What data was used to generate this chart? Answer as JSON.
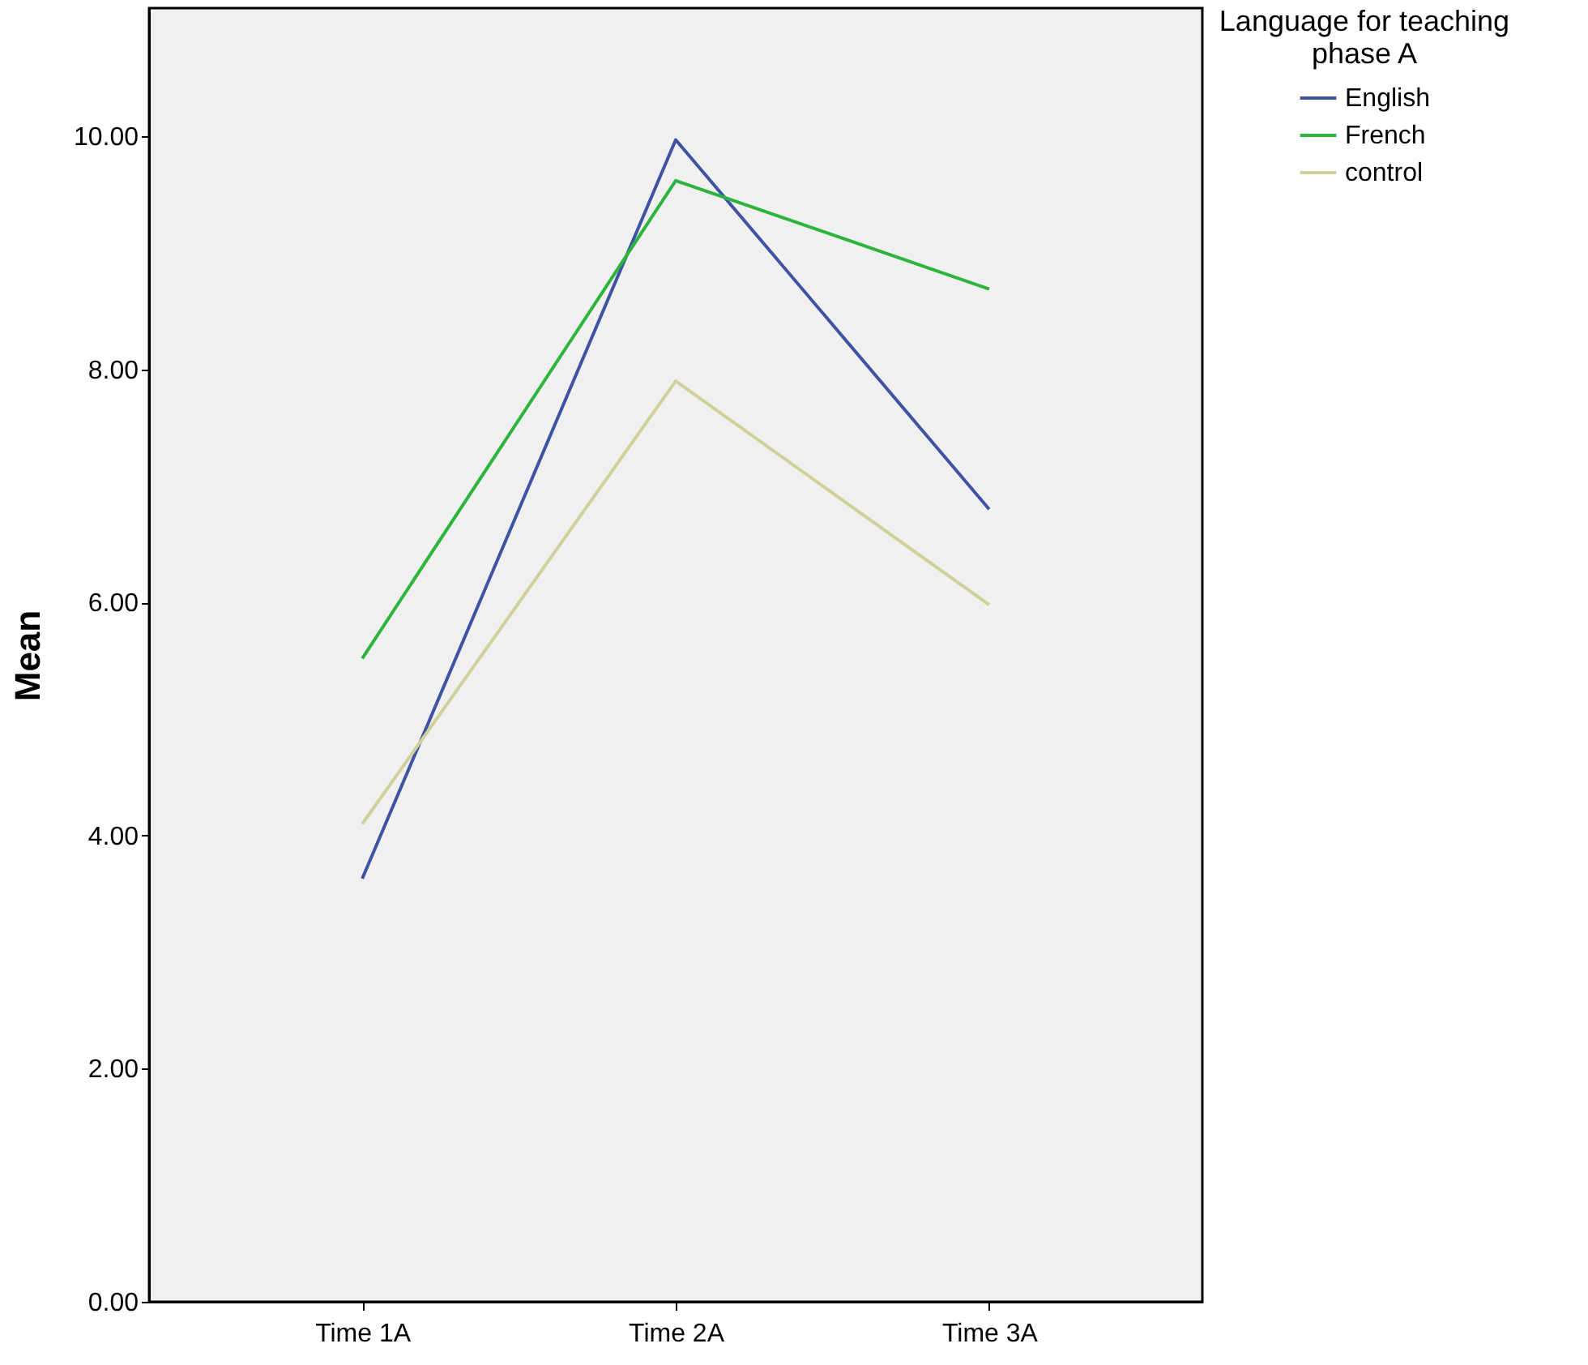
{
  "chart_data": {
    "type": "line",
    "ylabel": "Mean",
    "legend_title": "Language for teaching phase A",
    "categories": [
      "Time 1A",
      "Time 2A",
      "Time 3A"
    ],
    "series": [
      {
        "name": "English",
        "color": "#3e53a4",
        "values": [
          3.63,
          9.97,
          6.8
        ]
      },
      {
        "name": "French",
        "color": "#2db43c",
        "values": [
          5.52,
          9.62,
          8.69
        ]
      },
      {
        "name": "control",
        "color": "#d2d09a",
        "values": [
          4.1,
          7.9,
          5.98
        ]
      }
    ],
    "ylim": [
      0,
      11.1
    ],
    "yticks": [
      {
        "value": 0,
        "label": "0.00"
      },
      {
        "value": 2,
        "label": "2.00"
      },
      {
        "value": 4,
        "label": "4.00"
      },
      {
        "value": 6,
        "label": "6.00"
      },
      {
        "value": 8,
        "label": "8.00"
      },
      {
        "value": 10,
        "label": "10.00"
      }
    ],
    "grid": false,
    "legend": "top right",
    "marker": "none",
    "line_style": "solid"
  }
}
